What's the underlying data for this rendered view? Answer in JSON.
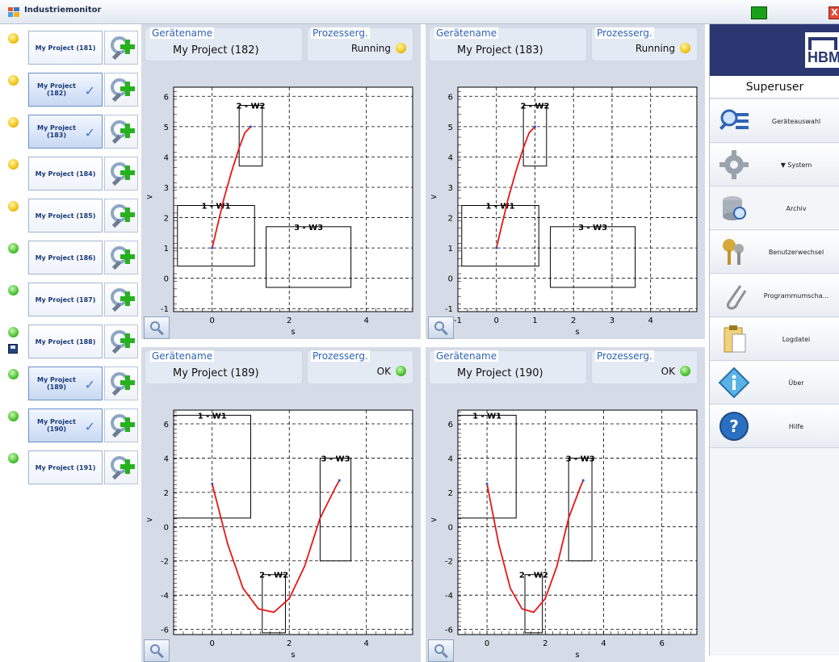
{
  "window": {
    "title": "Industriemonitor",
    "close_glyph": "X"
  },
  "devices": [
    {
      "label": "My Project (181)",
      "status": "yellow",
      "selected": false
    },
    {
      "label": "My Project (182)",
      "status": "yellow",
      "selected": true
    },
    {
      "label": "My Project (183)",
      "status": "yellow",
      "selected": true
    },
    {
      "label": "My Project (184)",
      "status": "yellow",
      "selected": false
    },
    {
      "label": "My Project (185)",
      "status": "yellow",
      "selected": false
    },
    {
      "label": "My Project (186)",
      "status": "green",
      "selected": false
    },
    {
      "label": "My Project (187)",
      "status": "green",
      "selected": false
    },
    {
      "label": "My Project (188)",
      "status": "green",
      "selected": false
    },
    {
      "label": "My Project (189)",
      "status": "green",
      "selected": true
    },
    {
      "label": "My Project (190)",
      "status": "green",
      "selected": true
    },
    {
      "label": "My Project (191)",
      "status": "green",
      "selected": false
    }
  ],
  "check_glyph": "✓",
  "panels": [
    {
      "device_label": "Gerätename",
      "device_name": "My Project (182)",
      "process_label": "Prozesserg.",
      "process_value": "Running",
      "status": "yellow",
      "plot_index": 0
    },
    {
      "device_label": "Gerätename",
      "device_name": "My Project (183)",
      "process_label": "Prozesserg.",
      "process_value": "Running",
      "status": "yellow",
      "plot_index": 1
    },
    {
      "device_label": "Gerätename",
      "device_name": "My Project (189)",
      "process_label": "Prozesserg.",
      "process_value": "OK",
      "status": "green",
      "plot_index": 2
    },
    {
      "device_label": "Gerätename",
      "device_name": "My Project (190)",
      "process_label": "Prozesserg.",
      "process_value": "OK",
      "status": "green",
      "plot_index": 3
    }
  ],
  "sidebar": {
    "brand": "HBM",
    "user": "Superuser",
    "items": [
      {
        "label": "Geräteauswahl",
        "icon": "device-search-icon",
        "raised": true
      },
      {
        "label": "▼ System",
        "icon": "gear-icon",
        "raised": true
      },
      {
        "label": "Archiv",
        "icon": "archive-icon",
        "raised": false
      },
      {
        "label": "Benutzerwechsel",
        "icon": "keys-icon",
        "raised": true
      },
      {
        "label": "Programmumscha...",
        "icon": "paperclip-icon",
        "raised": true
      },
      {
        "label": "Logdatei",
        "icon": "clipboard-icon",
        "raised": true
      },
      {
        "label": "Über",
        "icon": "info-icon",
        "raised": true
      },
      {
        "label": "Hilfe",
        "icon": "help-icon",
        "raised": true
      }
    ]
  },
  "colors": {
    "curve": "#e81616",
    "grid": "#000000",
    "accent": "#2f63b5"
  },
  "chart_data": [
    {
      "type": "line",
      "xlabel": "s",
      "ylabel": ">",
      "xlim": [
        -1,
        5.2
      ],
      "ylim": [
        -1.1,
        6.3
      ],
      "xticks": [
        0,
        2,
        4
      ],
      "yticks": [
        -1,
        0,
        1,
        2,
        3,
        4,
        5,
        6
      ],
      "grid": true,
      "series": [
        {
          "x": [
            0,
            0.15,
            0.3,
            0.5,
            0.7,
            0.85,
            1.0
          ],
          "y": [
            1.0,
            1.8,
            2.6,
            3.5,
            4.3,
            4.8,
            5.0
          ]
        }
      ],
      "windows": [
        {
          "label": "1 - W1",
          "x": [
            -0.9,
            1.1
          ],
          "y": [
            0.4,
            2.4
          ]
        },
        {
          "label": "2 - W2",
          "x": [
            0.7,
            1.3
          ],
          "y": [
            3.7,
            5.7
          ]
        },
        {
          "label": "3 - W3",
          "x": [
            1.4,
            3.6
          ],
          "y": [
            -0.3,
            1.7
          ]
        }
      ]
    },
    {
      "type": "line",
      "xlabel": "s",
      "ylabel": ">",
      "xlim": [
        -1,
        5.2
      ],
      "ylim": [
        -1.1,
        6.3
      ],
      "xticks": [
        -1,
        0,
        1,
        2,
        3,
        4
      ],
      "yticks": [
        -1,
        0,
        1,
        2,
        3,
        4,
        5,
        6
      ],
      "grid": true,
      "series": [
        {
          "x": [
            0,
            0.15,
            0.3,
            0.5,
            0.7,
            0.85,
            1.0
          ],
          "y": [
            1.0,
            1.8,
            2.6,
            3.5,
            4.3,
            4.8,
            5.0
          ]
        }
      ],
      "windows": [
        {
          "label": "1 - W1",
          "x": [
            -0.9,
            1.1
          ],
          "y": [
            0.4,
            2.4
          ]
        },
        {
          "label": "2 - W2",
          "x": [
            0.7,
            1.3
          ],
          "y": [
            3.7,
            5.7
          ]
        },
        {
          "label": "3 - W3",
          "x": [
            1.4,
            3.6
          ],
          "y": [
            -0.3,
            1.7
          ]
        }
      ]
    },
    {
      "type": "line",
      "xlabel": "s",
      "ylabel": ">",
      "xlim": [
        -1,
        5.2
      ],
      "ylim": [
        -6.3,
        6.8
      ],
      "xticks": [
        0,
        2,
        4
      ],
      "yticks": [
        -6,
        -4,
        -2,
        0,
        2,
        4,
        6
      ],
      "grid": true,
      "series": [
        {
          "x": [
            0,
            0.4,
            0.8,
            1.2,
            1.6,
            2.0,
            2.4,
            2.8,
            3.2,
            3.3
          ],
          "y": [
            2.5,
            -1.0,
            -3.6,
            -4.8,
            -5.0,
            -4.2,
            -2.3,
            0.5,
            2.3,
            2.7
          ]
        }
      ],
      "windows": [
        {
          "label": "1 - W1",
          "x": [
            -1.0,
            1.0
          ],
          "y": [
            0.5,
            6.5
          ]
        },
        {
          "label": "2 - W2",
          "x": [
            1.3,
            1.9
          ],
          "y": [
            -6.2,
            -2.8
          ]
        },
        {
          "label": "3 - W3",
          "x": [
            2.8,
            3.6
          ],
          "y": [
            -2.0,
            4.0
          ]
        }
      ]
    },
    {
      "type": "line",
      "xlabel": "s",
      "ylabel": ">",
      "xlim": [
        -1,
        7.2
      ],
      "ylim": [
        -6.3,
        6.8
      ],
      "xticks": [
        0,
        2,
        4,
        6
      ],
      "yticks": [
        -6,
        -4,
        -2,
        0,
        2,
        4,
        6
      ],
      "grid": true,
      "series": [
        {
          "x": [
            0,
            0.4,
            0.8,
            1.2,
            1.6,
            2.0,
            2.4,
            2.8,
            3.2,
            3.3
          ],
          "y": [
            2.5,
            -1.0,
            -3.6,
            -4.8,
            -5.0,
            -4.2,
            -2.3,
            0.5,
            2.3,
            2.7
          ]
        }
      ],
      "windows": [
        {
          "label": "1 - W1",
          "x": [
            -1.0,
            1.0
          ],
          "y": [
            0.5,
            6.5
          ]
        },
        {
          "label": "2 - W2",
          "x": [
            1.3,
            1.9
          ],
          "y": [
            -6.2,
            -2.8
          ]
        },
        {
          "label": "3 - W3",
          "x": [
            2.8,
            3.6
          ],
          "y": [
            -2.0,
            4.0
          ]
        }
      ]
    }
  ]
}
